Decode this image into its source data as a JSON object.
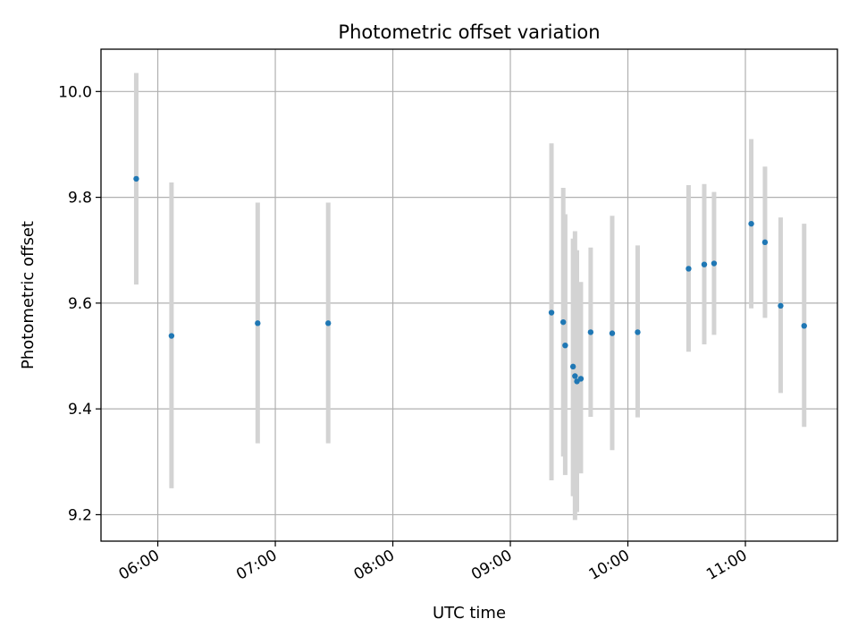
{
  "chart_data": {
    "type": "scatter",
    "title": "Photometric offset variation",
    "xlabel": "UTC time",
    "ylabel": "Photometric offset",
    "x_ticks": [
      "06:00",
      "07:00",
      "08:00",
      "09:00",
      "10:00",
      "11:00"
    ],
    "y_ticks": [
      "9.2",
      "9.4",
      "9.6",
      "9.8",
      "10.0"
    ],
    "xlim": [
      "05:31",
      "11:47"
    ],
    "ylim": [
      9.15,
      10.08
    ],
    "grid": true,
    "colors": {
      "point": "#1f77b4",
      "errorbar": "#d3d3d3",
      "grid": "#b0b0b0"
    },
    "points": [
      {
        "x": "05:49",
        "y": 9.835,
        "low": 9.635,
        "high": 10.035
      },
      {
        "x": "06:07",
        "y": 9.538,
        "low": 9.25,
        "high": 9.828
      },
      {
        "x": "06:51",
        "y": 9.562,
        "low": 9.335,
        "high": 9.79
      },
      {
        "x": "07:27",
        "y": 9.562,
        "low": 9.335,
        "high": 9.79
      },
      {
        "x": "09:21",
        "y": 9.582,
        "low": 9.265,
        "high": 9.902
      },
      {
        "x": "09:27",
        "y": 9.564,
        "low": 9.31,
        "high": 9.818
      },
      {
        "x": "09:28",
        "y": 9.52,
        "low": 9.275,
        "high": 9.768
      },
      {
        "x": "09:32",
        "y": 9.48,
        "low": 9.235,
        "high": 9.722
      },
      {
        "x": "09:33",
        "y": 9.462,
        "low": 9.19,
        "high": 9.736
      },
      {
        "x": "09:34",
        "y": 9.452,
        "low": 9.205,
        "high": 9.7
      },
      {
        "x": "09:36",
        "y": 9.457,
        "low": 9.278,
        "high": 9.64
      },
      {
        "x": "09:41",
        "y": 9.545,
        "low": 9.385,
        "high": 9.705
      },
      {
        "x": "09:52",
        "y": 9.543,
        "low": 9.322,
        "high": 9.765
      },
      {
        "x": "10:05",
        "y": 9.545,
        "low": 9.384,
        "high": 9.709
      },
      {
        "x": "10:31",
        "y": 9.665,
        "low": 9.508,
        "high": 9.823
      },
      {
        "x": "10:39",
        "y": 9.673,
        "low": 9.522,
        "high": 9.825
      },
      {
        "x": "10:44",
        "y": 9.675,
        "low": 9.54,
        "high": 9.81
      },
      {
        "x": "11:03",
        "y": 9.75,
        "low": 9.59,
        "high": 9.91
      },
      {
        "x": "11:10",
        "y": 9.715,
        "low": 9.572,
        "high": 9.858
      },
      {
        "x": "11:18",
        "y": 9.595,
        "low": 9.43,
        "high": 9.762
      },
      {
        "x": "11:30",
        "y": 9.557,
        "low": 9.366,
        "high": 9.75
      }
    ]
  }
}
